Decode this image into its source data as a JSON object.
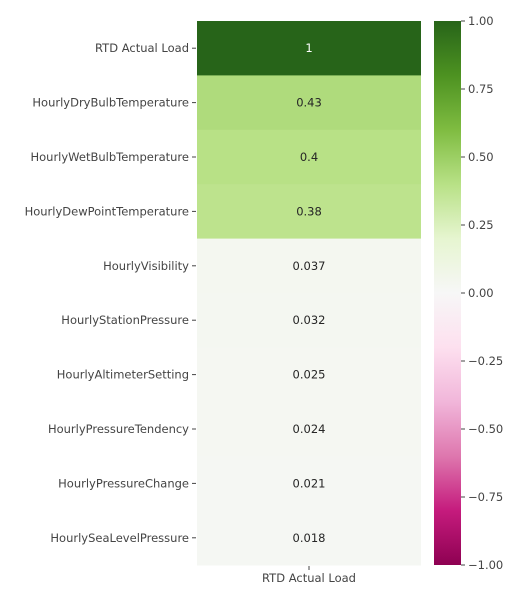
{
  "chart_data": {
    "type": "heatmap",
    "title": "",
    "xlabel": "",
    "ylabel": "",
    "columns": [
      "RTD Actual Load"
    ],
    "rows": [
      "RTD Actual Load",
      "HourlyDryBulbTemperature",
      "HourlyWetBulbTemperature",
      "HourlyDewPointTemperature",
      "HourlyVisibility",
      "HourlyStationPressure",
      "HourlyAltimeterSetting",
      "HourlyPressureTendency",
      "HourlyPressureChange",
      "HourlySeaLevelPressure"
    ],
    "values": [
      1,
      0.43,
      0.4,
      0.38,
      0.037,
      0.032,
      0.025,
      0.024,
      0.021,
      0.018
    ],
    "annotations": [
      "1",
      "0.43",
      "0.4",
      "0.38",
      "0.037",
      "0.032",
      "0.025",
      "0.024",
      "0.021",
      "0.018"
    ],
    "colormap": "PiYG",
    "vmin": -1,
    "vmax": 1,
    "colorbar_ticks": [
      1.0,
      0.75,
      0.5,
      0.25,
      0.0,
      -0.25,
      -0.5,
      -0.75,
      -1.0
    ],
    "colorbar_tick_labels": [
      "1.00",
      "0.75",
      "0.50",
      "0.25",
      "0.00",
      "−0.25",
      "−0.50",
      "−0.75",
      "−1.00"
    ],
    "grid": false,
    "legend": "colorbar-right"
  }
}
